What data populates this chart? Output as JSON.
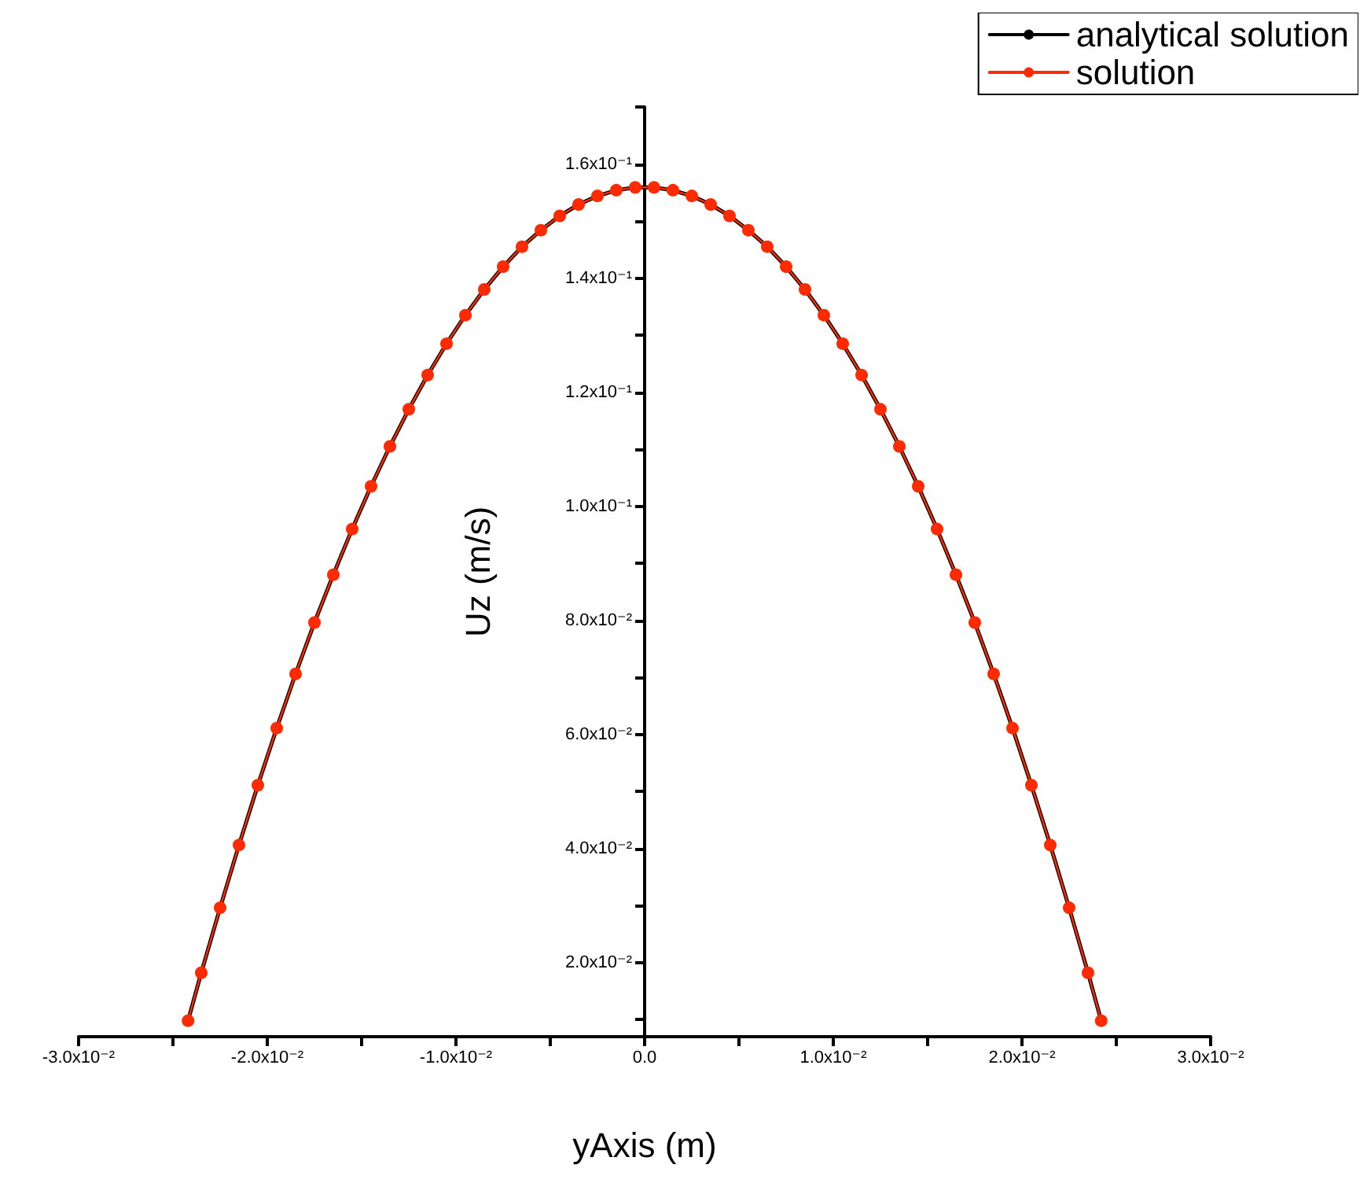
{
  "chart_data": {
    "type": "line",
    "xlabel": "yAxis (m)",
    "ylabel": "Uz (m/s)",
    "x": [
      -0.0242,
      -0.0235,
      -0.0225,
      -0.0215,
      -0.0205,
      -0.0195,
      -0.0185,
      -0.0175,
      -0.0165,
      -0.0155,
      -0.0145,
      -0.0135,
      -0.0125,
      -0.0115,
      -0.0105,
      -0.0095,
      -0.0085,
      -0.0075,
      -0.0065,
      -0.0055,
      -0.0045,
      -0.0035,
      -0.0025,
      -0.0015,
      -0.0005,
      0.0005,
      0.0015,
      0.0025,
      0.0035,
      0.0045,
      0.0055,
      0.0065,
      0.0075,
      0.0085,
      0.0095,
      0.0105,
      0.0115,
      0.0125,
      0.0135,
      0.0145,
      0.0155,
      0.0165,
      0.0175,
      0.0185,
      0.0195,
      0.0205,
      0.0215,
      0.0225,
      0.0235,
      0.0242
    ],
    "series": [
      {
        "name": "analytical solution",
        "color": "#000000",
        "marker": "none",
        "values": [
          0.0098,
          0.0182,
          0.0296,
          0.0406,
          0.0511,
          0.0611,
          0.0706,
          0.0796,
          0.088,
          0.096,
          0.1035,
          0.1105,
          0.117,
          0.123,
          0.1285,
          0.1335,
          0.138,
          0.142,
          0.1455,
          0.1484,
          0.1509,
          0.1529,
          0.1544,
          0.1554,
          0.1559,
          0.1559,
          0.1554,
          0.1544,
          0.1529,
          0.1509,
          0.1484,
          0.1455,
          0.142,
          0.138,
          0.1335,
          0.1285,
          0.123,
          0.117,
          0.1105,
          0.1035,
          0.096,
          0.088,
          0.0796,
          0.0706,
          0.0611,
          0.0511,
          0.0406,
          0.0296,
          0.0182,
          0.0098
        ]
      },
      {
        "name": "solution",
        "color": "#ff2a00",
        "marker": "circle",
        "values": [
          0.0098,
          0.0182,
          0.0296,
          0.0406,
          0.0511,
          0.0611,
          0.0706,
          0.0796,
          0.088,
          0.096,
          0.1035,
          0.1105,
          0.117,
          0.123,
          0.1285,
          0.1335,
          0.138,
          0.142,
          0.1455,
          0.1484,
          0.1509,
          0.1529,
          0.1544,
          0.1554,
          0.1559,
          0.1559,
          0.1554,
          0.1544,
          0.1529,
          0.1509,
          0.1484,
          0.1455,
          0.142,
          0.138,
          0.1335,
          0.1285,
          0.123,
          0.117,
          0.1105,
          0.1035,
          0.096,
          0.088,
          0.0796,
          0.0706,
          0.0611,
          0.0511,
          0.0406,
          0.0296,
          0.0182,
          0.0098
        ]
      }
    ],
    "xlim": [
      -0.03,
      0.03
    ],
    "xticks": [
      {
        "value": -0.03,
        "label": "-3.0x10⁻²"
      },
      {
        "value": -0.025,
        "label": null
      },
      {
        "value": -0.02,
        "label": "-2.0x10⁻²"
      },
      {
        "value": -0.015,
        "label": null
      },
      {
        "value": -0.01,
        "label": "-1.0x10⁻²"
      },
      {
        "value": -0.005,
        "label": null
      },
      {
        "value": 0,
        "label": "0.0"
      },
      {
        "value": 0.005,
        "label": null
      },
      {
        "value": 0.01,
        "label": "1.0x10⁻²"
      },
      {
        "value": 0.015,
        "label": null
      },
      {
        "value": 0.02,
        "label": "2.0x10⁻²"
      },
      {
        "value": 0.025,
        "label": null
      },
      {
        "value": 0.03,
        "label": "3.0x10⁻²"
      }
    ],
    "ylim": [
      0.007,
      0.17
    ],
    "yticks": [
      {
        "value": 0.01,
        "label": null
      },
      {
        "value": 0.02,
        "label": "2.0x10⁻²"
      },
      {
        "value": 0.03,
        "label": null
      },
      {
        "value": 0.04,
        "label": "4.0x10⁻²"
      },
      {
        "value": 0.05,
        "label": null
      },
      {
        "value": 0.06,
        "label": "6.0x10⁻²"
      },
      {
        "value": 0.07,
        "label": null
      },
      {
        "value": 0.08,
        "label": "8.0x10⁻²"
      },
      {
        "value": 0.09,
        "label": null
      },
      {
        "value": 0.1,
        "label": "1.0x10⁻¹"
      },
      {
        "value": 0.11,
        "label": null
      },
      {
        "value": 0.12,
        "label": "1.2x10⁻¹"
      },
      {
        "value": 0.13,
        "label": null
      },
      {
        "value": 0.14,
        "label": "1.4x10⁻¹"
      },
      {
        "value": 0.15,
        "label": null
      },
      {
        "value": 0.16,
        "label": "1.6x10⁻¹"
      },
      {
        "value": 0.17,
        "label": null
      }
    ],
    "grid": false,
    "legend": "top right",
    "line_style": "solid"
  }
}
